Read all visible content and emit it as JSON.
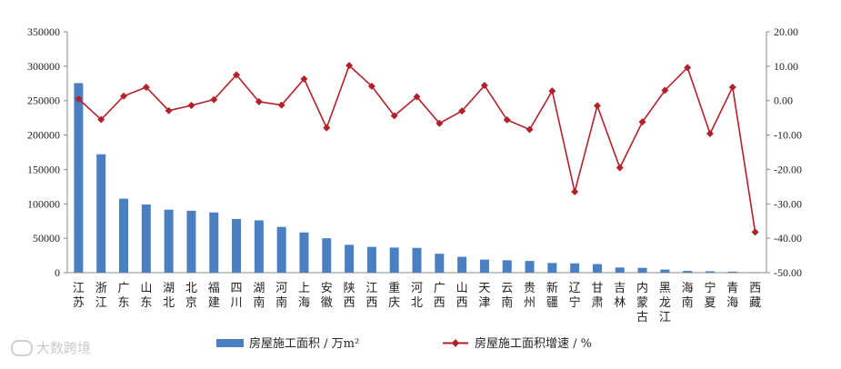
{
  "chart_data": {
    "type": "bar+line",
    "categories": [
      "江苏",
      "浙江",
      "广东",
      "山东",
      "湖北",
      "北京",
      "福建",
      "四川",
      "湖南",
      "河南",
      "上海",
      "安徽",
      "陕西",
      "江西",
      "重庆",
      "河北",
      "广西",
      "山西",
      "天津",
      "云南",
      "贵州",
      "新疆",
      "辽宁",
      "甘肃",
      "吉林",
      "内蒙古",
      "黑龙江",
      "海南",
      "宁夏",
      "青海",
      "西藏"
    ],
    "series": [
      {
        "name": "房屋施工面积 / 万m²",
        "type": "bar",
        "axis": "left",
        "color": "#4a7fc1",
        "values": [
          275500,
          172000,
          107500,
          99000,
          91500,
          90000,
          87500,
          78000,
          76000,
          66500,
          58500,
          50000,
          40500,
          37500,
          36500,
          36000,
          27500,
          23000,
          19000,
          18000,
          17000,
          14000,
          13500,
          12500,
          7500,
          7000,
          4500,
          2500,
          2000,
          1500,
          500
        ]
      },
      {
        "name": "房屋施工面积增速 / %",
        "type": "line",
        "axis": "right",
        "color": "#b3202a",
        "values": [
          0.5,
          -5.5,
          1.3,
          3.9,
          -2.9,
          -1.4,
          0.3,
          7.5,
          -0.3,
          -1.3,
          6.3,
          -7.9,
          10.2,
          4.2,
          -4.4,
          1.1,
          -6.6,
          -3.0,
          4.4,
          -5.6,
          -8.4,
          2.8,
          -26.5,
          -1.5,
          -19.5,
          -6.2,
          3.0,
          9.6,
          -9.6,
          3.9,
          -38.2
        ]
      }
    ],
    "y_left": {
      "min": 0,
      "max": 350000,
      "ticks": [
        "0",
        "50000",
        "100000",
        "150000",
        "200000",
        "250000",
        "300000",
        "350000"
      ]
    },
    "y_right": {
      "min": -50,
      "max": 20,
      "ticks": [
        "-50.00",
        "-40.00",
        "-30.00",
        "-20.00",
        "-10.00",
        "0.00",
        "10.00",
        "20.00"
      ]
    },
    "grid": false,
    "legend_position": "bottom"
  },
  "legend": {
    "bar_label": "房屋施工面积 / 万m²",
    "line_label": "房屋施工面积增速 / %"
  },
  "watermark": "大数跨境"
}
